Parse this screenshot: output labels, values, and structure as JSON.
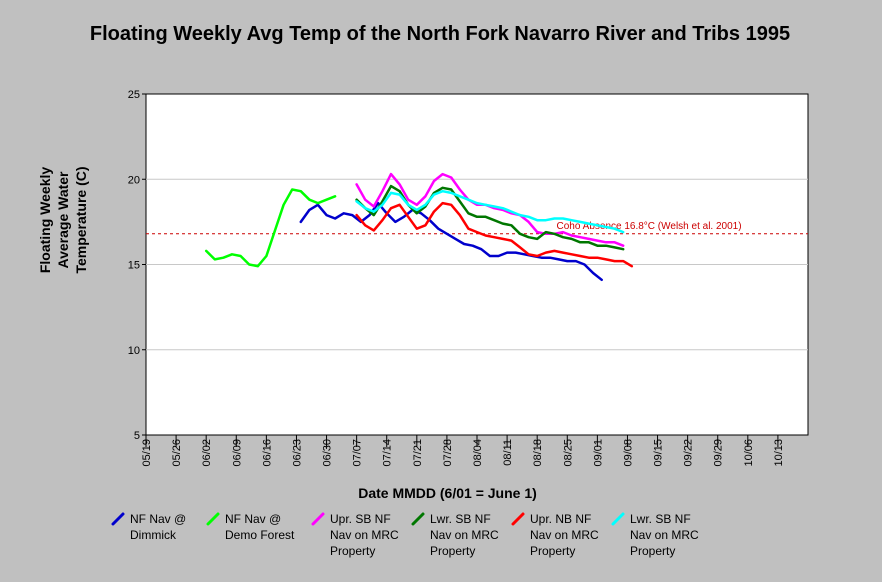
{
  "chart_data": {
    "type": "line",
    "title": "Floating Weekly Avg Temp of the North Fork Navarro River and Tribs 1995",
    "xlabel": "Date MMDD (6/01 = June 1)",
    "ylabel": "Floating Weekly Average Water Temperature (C)",
    "ylim": [
      5,
      25
    ],
    "yticks": [
      5,
      10,
      15,
      20,
      25
    ],
    "xticks": [
      "05/19",
      "05/26",
      "06/02",
      "06/09",
      "06/16",
      "06/23",
      "06/30",
      "07/07",
      "07/14",
      "07/21",
      "07/28",
      "08/04",
      "08/11",
      "08/18",
      "08/25",
      "09/01",
      "09/08",
      "09/15",
      "09/22",
      "09/29",
      "10/06",
      "10/13"
    ],
    "grid": "horizontal",
    "reference_line": {
      "value": 16.8,
      "label": "Coho Absence 16.8°C (Welsh et al. 2001)",
      "color": "#cc0000"
    },
    "series": [
      {
        "name": "NF Nav @ Dimmick",
        "color": "#0000cc",
        "points": [
          [
            36,
            17.5
          ],
          [
            38,
            18.2
          ],
          [
            40,
            18.5
          ],
          [
            42,
            17.9
          ],
          [
            44,
            17.7
          ],
          [
            46,
            18.0
          ],
          [
            48,
            17.9
          ],
          [
            50,
            17.5
          ],
          [
            52,
            17.9
          ],
          [
            54,
            18.6
          ],
          [
            56,
            18.0
          ],
          [
            58,
            17.5
          ],
          [
            60,
            17.8
          ],
          [
            62,
            18.2
          ],
          [
            64,
            18.0
          ],
          [
            66,
            17.6
          ],
          [
            68,
            17.1
          ],
          [
            70,
            16.8
          ],
          [
            72,
            16.5
          ],
          [
            74,
            16.2
          ],
          [
            76,
            16.1
          ],
          [
            78,
            15.9
          ],
          [
            80,
            15.5
          ],
          [
            82,
            15.5
          ],
          [
            84,
            15.7
          ],
          [
            86,
            15.7
          ],
          [
            88,
            15.6
          ],
          [
            90,
            15.5
          ],
          [
            92,
            15.4
          ],
          [
            94,
            15.4
          ],
          [
            96,
            15.3
          ],
          [
            98,
            15.2
          ],
          [
            100,
            15.2
          ],
          [
            102,
            15.0
          ],
          [
            104,
            14.5
          ],
          [
            106,
            14.1
          ]
        ]
      },
      {
        "name": "NF Nav @ Demo Forest",
        "color": "#00ff00",
        "points": [
          [
            14,
            15.8
          ],
          [
            16,
            15.3
          ],
          [
            18,
            15.4
          ],
          [
            20,
            15.6
          ],
          [
            22,
            15.5
          ],
          [
            24,
            15.0
          ],
          [
            26,
            14.9
          ],
          [
            28,
            15.5
          ],
          [
            30,
            17.0
          ],
          [
            32,
            18.5
          ],
          [
            34,
            19.4
          ],
          [
            36,
            19.3
          ],
          [
            38,
            18.8
          ],
          [
            40,
            18.6
          ],
          [
            42,
            18.8
          ],
          [
            44,
            19.0
          ]
        ]
      },
      {
        "name": "Upr. SB NF Nav on MRC Property",
        "color": "#ff00ff",
        "points": [
          [
            49,
            19.7
          ],
          [
            51,
            18.8
          ],
          [
            53,
            18.4
          ],
          [
            55,
            19.3
          ],
          [
            57,
            20.3
          ],
          [
            59,
            19.7
          ],
          [
            61,
            18.8
          ],
          [
            63,
            18.5
          ],
          [
            65,
            19.0
          ],
          [
            67,
            19.9
          ],
          [
            69,
            20.3
          ],
          [
            71,
            20.1
          ],
          [
            73,
            19.4
          ],
          [
            75,
            18.8
          ],
          [
            77,
            18.5
          ],
          [
            79,
            18.5
          ],
          [
            81,
            18.3
          ],
          [
            83,
            18.2
          ],
          [
            85,
            18.0
          ],
          [
            87,
            17.9
          ],
          [
            89,
            17.5
          ],
          [
            91,
            16.9
          ],
          [
            93,
            16.8
          ],
          [
            95,
            16.8
          ],
          [
            97,
            16.9
          ],
          [
            99,
            16.7
          ],
          [
            101,
            16.6
          ],
          [
            103,
            16.5
          ],
          [
            105,
            16.4
          ],
          [
            107,
            16.3
          ],
          [
            109,
            16.3
          ],
          [
            111,
            16.1
          ]
        ]
      },
      {
        "name": "Lwr. SB NF Nav on MRC Property",
        "color": "#007700",
        "points": [
          [
            49,
            18.8
          ],
          [
            51,
            18.3
          ],
          [
            53,
            17.9
          ],
          [
            55,
            18.7
          ],
          [
            57,
            19.6
          ],
          [
            59,
            19.3
          ],
          [
            61,
            18.5
          ],
          [
            63,
            18.0
          ],
          [
            65,
            18.4
          ],
          [
            67,
            19.2
          ],
          [
            69,
            19.5
          ],
          [
            71,
            19.4
          ],
          [
            73,
            18.7
          ],
          [
            75,
            18.0
          ],
          [
            77,
            17.8
          ],
          [
            79,
            17.8
          ],
          [
            81,
            17.6
          ],
          [
            83,
            17.4
          ],
          [
            85,
            17.3
          ],
          [
            87,
            16.8
          ],
          [
            89,
            16.6
          ],
          [
            91,
            16.5
          ],
          [
            93,
            16.9
          ],
          [
            95,
            16.8
          ],
          [
            97,
            16.6
          ],
          [
            99,
            16.5
          ],
          [
            101,
            16.3
          ],
          [
            103,
            16.3
          ],
          [
            105,
            16.1
          ],
          [
            107,
            16.1
          ],
          [
            109,
            16.0
          ],
          [
            111,
            15.9
          ]
        ]
      },
      {
        "name": "Upr. NB NF Nav on MRC Property",
        "color": "#ff0000",
        "points": [
          [
            49,
            17.9
          ],
          [
            51,
            17.3
          ],
          [
            53,
            17.0
          ],
          [
            55,
            17.6
          ],
          [
            57,
            18.3
          ],
          [
            59,
            18.5
          ],
          [
            61,
            17.8
          ],
          [
            63,
            17.1
          ],
          [
            65,
            17.3
          ],
          [
            67,
            18.1
          ],
          [
            69,
            18.6
          ],
          [
            71,
            18.5
          ],
          [
            73,
            17.9
          ],
          [
            75,
            17.1
          ],
          [
            77,
            16.9
          ],
          [
            79,
            16.7
          ],
          [
            81,
            16.6
          ],
          [
            83,
            16.5
          ],
          [
            85,
            16.4
          ],
          [
            87,
            16.0
          ],
          [
            89,
            15.6
          ],
          [
            91,
            15.5
          ],
          [
            93,
            15.7
          ],
          [
            95,
            15.8
          ],
          [
            97,
            15.7
          ],
          [
            99,
            15.6
          ],
          [
            101,
            15.5
          ],
          [
            103,
            15.4
          ],
          [
            105,
            15.4
          ],
          [
            107,
            15.3
          ],
          [
            109,
            15.2
          ],
          [
            111,
            15.2
          ],
          [
            113,
            14.9
          ]
        ]
      },
      {
        "name": "Lwr. SB NF Nav on MRC Property",
        "color": "#00ffff",
        "points": [
          [
            49,
            18.7
          ],
          [
            51,
            18.3
          ],
          [
            53,
            18.1
          ],
          [
            55,
            18.5
          ],
          [
            57,
            19.2
          ],
          [
            59,
            19.1
          ],
          [
            61,
            18.5
          ],
          [
            63,
            18.2
          ],
          [
            65,
            18.5
          ],
          [
            67,
            19.1
          ],
          [
            69,
            19.3
          ],
          [
            71,
            19.2
          ],
          [
            73,
            19.0
          ],
          [
            75,
            18.8
          ],
          [
            77,
            18.6
          ],
          [
            79,
            18.5
          ],
          [
            81,
            18.4
          ],
          [
            83,
            18.3
          ],
          [
            85,
            18.1
          ],
          [
            87,
            17.9
          ],
          [
            89,
            17.8
          ],
          [
            91,
            17.6
          ],
          [
            93,
            17.6
          ],
          [
            95,
            17.7
          ],
          [
            97,
            17.7
          ],
          [
            99,
            17.6
          ],
          [
            101,
            17.5
          ],
          [
            103,
            17.4
          ],
          [
            105,
            17.3
          ],
          [
            107,
            17.2
          ],
          [
            109,
            17.1
          ],
          [
            111,
            16.9
          ]
        ]
      }
    ]
  },
  "legend": [
    {
      "text": "NF Nav @\nDimmick",
      "color": "#0000cc"
    },
    {
      "text": "NF Nav @\nDemo Forest",
      "color": "#00ff00"
    },
    {
      "text": "Upr. SB NF\nNav on MRC\nProperty",
      "color": "#ff00ff"
    },
    {
      "text": "Lwr. SB NF\nNav on MRC\nProperty",
      "color": "#007700"
    },
    {
      "text": "Upr. NB NF\nNav on MRC\nProperty",
      "color": "#ff0000"
    },
    {
      "text": "Lwr. SB NF\nNav on MRC\nProperty",
      "color": "#00ffff"
    }
  ]
}
